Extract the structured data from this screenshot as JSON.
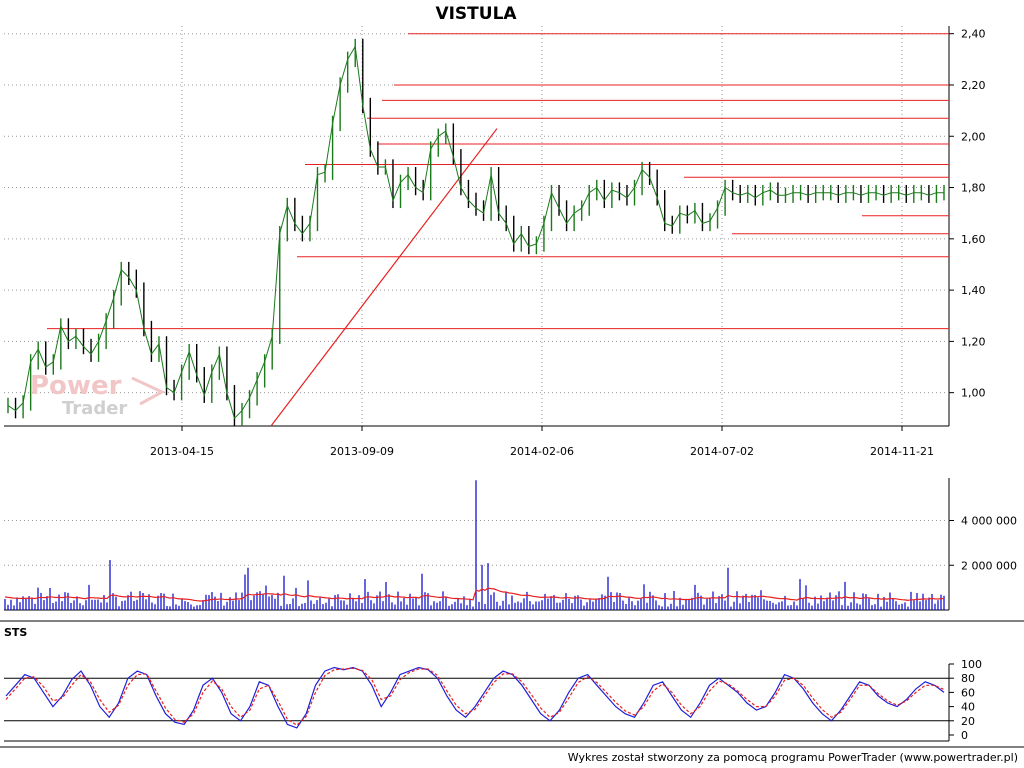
{
  "chart_data": [
    {
      "type": "line",
      "subtype": "candlestick",
      "title": "VISTULA",
      "series": [
        {
          "x": [
            0,
            6,
            12,
            18,
            24,
            30,
            36,
            42,
            48,
            54,
            60,
            66,
            72,
            78,
            84,
            90,
            96,
            102,
            108,
            114,
            120,
            126,
            132,
            138,
            144,
            150,
            156,
            162,
            168,
            174,
            180,
            186,
            192,
            198,
            204,
            210,
            216,
            222,
            228,
            234,
            240,
            246,
            252,
            258,
            264,
            270,
            276,
            282,
            288,
            294,
            300,
            306,
            312,
            318,
            324,
            330,
            336,
            342,
            348,
            354,
            360,
            366,
            372,
            378,
            384,
            390,
            396,
            402,
            408,
            414,
            420,
            426,
            432,
            438,
            444,
            450,
            456,
            462,
            468,
            474,
            480,
            486,
            492,
            498,
            504,
            510,
            516,
            522,
            528,
            534,
            540,
            546,
            552,
            558,
            564,
            570,
            576,
            582,
            588,
            594,
            600,
            606,
            612,
            618,
            624,
            630,
            636,
            642,
            648,
            654,
            660,
            666,
            672,
            678,
            684,
            690,
            696,
            702,
            708,
            714,
            720,
            726,
            732,
            738,
            744
          ],
          "values": [
            0.95,
            0.93,
            0.96,
            1.12,
            1.17,
            1.1,
            1.12,
            1.26,
            1.2,
            1.22,
            1.18,
            1.15,
            1.2,
            1.28,
            1.37,
            1.48,
            1.45,
            1.4,
            1.25,
            1.15,
            1.19,
            1.02,
            1.0,
            1.08,
            1.16,
            1.07,
            0.99,
            1.08,
            1.15,
            1.0,
            0.9,
            0.93,
            0.98,
            1.05,
            1.12,
            1.22,
            1.62,
            1.73,
            1.66,
            1.62,
            1.66,
            1.85,
            1.86,
            2.05,
            2.2,
            2.3,
            2.35,
            2.12,
            1.95,
            1.88,
            1.88,
            1.75,
            1.82,
            1.85,
            1.8,
            1.78,
            1.95,
            2.0,
            2.02,
            1.92,
            1.8,
            1.75,
            1.72,
            1.7,
            1.85,
            1.7,
            1.66,
            1.58,
            1.62,
            1.57,
            1.58,
            1.66,
            1.78,
            1.72,
            1.66,
            1.7,
            1.72,
            1.78,
            1.8,
            1.75,
            1.79,
            1.78,
            1.76,
            1.8,
            1.87,
            1.84,
            1.76,
            1.66,
            1.65,
            1.7,
            1.69,
            1.71,
            1.66,
            1.67,
            1.72,
            1.8,
            1.78,
            1.77,
            1.78,
            1.76,
            1.78,
            1.79,
            1.77,
            1.77,
            1.78,
            1.78,
            1.77,
            1.78,
            1.78,
            1.78,
            1.77,
            1.78,
            1.78,
            1.77,
            1.78,
            1.78,
            1.77,
            1.78,
            1.78,
            1.77,
            1.78,
            1.78,
            1.77,
            1.78,
            1.78
          ]
        }
      ],
      "support_resistance_levels": [
        2.4,
        2.2,
        2.14,
        2.07,
        1.97,
        1.89,
        1.84,
        1.69,
        1.62,
        1.53,
        1.25
      ],
      "trendline": {
        "from": [
          0,
          0.87
        ],
        "to": [
          1,
          2.03
        ]
      },
      "x_tick_labels": [
        "2013-04-15",
        "2013-09-09",
        "2014-02-06",
        "2014-07-02",
        "2014-11-21"
      ],
      "y_tick_labels": [
        "2,40",
        "2,20",
        "2,00",
        "1,80",
        "1,60",
        "1,40",
        "1,20",
        "1,00"
      ],
      "y_ticks": [
        2.4,
        2.2,
        2.0,
        1.8,
        1.6,
        1.4,
        1.2,
        1.0
      ],
      "ylim": [
        0.87,
        2.43
      ],
      "grid": true,
      "colors": {
        "up": "#1a7a1a",
        "down": "#000000",
        "levels": "#e82020",
        "grid": "#9a9a9a"
      }
    },
    {
      "type": "bar",
      "subtitle": "volume",
      "y_tick_labels": [
        "4 000 000",
        "2 000 000"
      ],
      "y_ticks": [
        4000000,
        2000000
      ],
      "ylim": [
        0,
        5900000
      ],
      "max_spike": 5800000,
      "colors": {
        "bars": "#0000cc",
        "average": "#e82020"
      }
    },
    {
      "type": "line",
      "title": "STS",
      "y_tick_labels": [
        "100",
        "80",
        "60",
        "40",
        "20",
        "0"
      ],
      "y_ticks": [
        100,
        80,
        60,
        40,
        20,
        0
      ],
      "ylim": [
        0,
        100
      ],
      "reference_lines": [
        80,
        20
      ],
      "series": [
        {
          "values": [
            55,
            70,
            85,
            80,
            60,
            40,
            55,
            78,
            90,
            70,
            40,
            25,
            45,
            80,
            90,
            85,
            55,
            30,
            18,
            15,
            35,
            70,
            80,
            60,
            30,
            20,
            40,
            75,
            70,
            40,
            15,
            10,
            30,
            70,
            90,
            95,
            92,
            95,
            90,
            70,
            40,
            60,
            85,
            90,
            95,
            92,
            80,
            55,
            35,
            25,
            40,
            60,
            80,
            90,
            85,
            70,
            50,
            30,
            20,
            35,
            60,
            80,
            85,
            70,
            55,
            40,
            30,
            25,
            45,
            70,
            75,
            55,
            35,
            25,
            45,
            70,
            80,
            70,
            60,
            45,
            35,
            40,
            60,
            85,
            80,
            65,
            45,
            30,
            20,
            35,
            55,
            75,
            70,
            55,
            45,
            40,
            50,
            65,
            75,
            70,
            60
          ]
        },
        {
          "values": [
            50,
            65,
            80,
            82,
            68,
            48,
            52,
            70,
            85,
            75,
            50,
            32,
            42,
            70,
            85,
            86,
            62,
            38,
            22,
            18,
            30,
            60,
            76,
            65,
            40,
            25,
            35,
            65,
            70,
            48,
            22,
            14,
            26,
            60,
            84,
            92,
            93,
            94,
            91,
            78,
            50,
            55,
            78,
            88,
            93,
            93,
            84,
            62,
            42,
            30,
            36,
            55,
            74,
            86,
            86,
            75,
            57,
            38,
            25,
            32,
            52,
            74,
            82,
            74,
            60,
            46,
            34,
            28,
            40,
            62,
            72,
            60,
            42,
            30,
            40,
            62,
            76,
            72,
            62,
            50,
            40,
            40,
            55,
            77,
            80,
            70,
            52,
            36,
            25,
            32,
            50,
            70,
            70,
            58,
            48,
            42,
            48,
            60,
            70,
            70,
            64
          ]
        }
      ],
      "colors": {
        "k": "#1f1fd8",
        "d": "#e82020"
      }
    }
  ],
  "footer": {
    "text": "Wykres został stworzony za pomocą programu PowerTrader (www.powertrader.pl)"
  },
  "watermark": {
    "line1": "Power",
    "line2": "Trader"
  }
}
